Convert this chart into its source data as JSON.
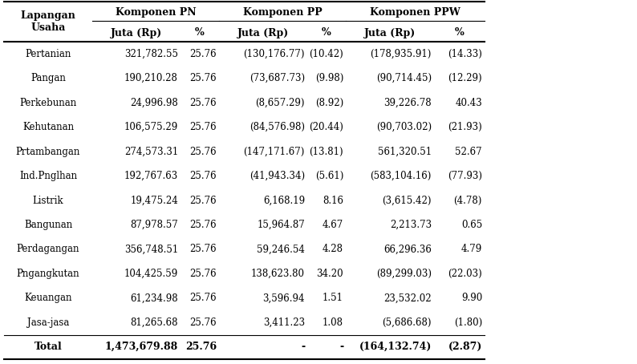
{
  "col_headers1": [
    "Lapangan\nUsaha",
    "Komponen PN",
    "Komponen PP",
    "Komponen PPW"
  ],
  "col_headers2": [
    "Juta (Rp)",
    "%",
    "Juta (Rp)",
    "%",
    "Juta (Rp)",
    "%"
  ],
  "rows": [
    [
      "Pertanian",
      "321,782.55",
      "25.76",
      "(130,176.77)",
      "(10.42)",
      "(178,935.91)",
      "(14.33)"
    ],
    [
      "Pangan",
      "190,210.28",
      "25.76",
      "(73,687.73)",
      "(9.98)",
      "(90,714.45)",
      "(12.29)"
    ],
    [
      "Perkebunan",
      "24,996.98",
      "25.76",
      "(8,657.29)",
      "(8.92)",
      "39,226.78",
      "40.43"
    ],
    [
      "Kehutanan",
      "106,575.29",
      "25.76",
      "(84,576.98)",
      "(20.44)",
      "(90,703.02)",
      "(21.93)"
    ],
    [
      "Prtambangan",
      "274,573.31",
      "25.76",
      "(147,171.67)",
      "(13.81)",
      "561,320.51",
      "52.67"
    ],
    [
      "Ind.Pnglhan",
      "192,767.63",
      "25.76",
      "(41,943.34)",
      "(5.61)",
      "(583,104.16)",
      "(77.93)"
    ],
    [
      "Listrik",
      "19,475.24",
      "25.76",
      "6,168.19",
      "8.16",
      "(3,615.42)",
      "(4.78)"
    ],
    [
      "Bangunan",
      "87,978.57",
      "25.76",
      "15,964.87",
      "4.67",
      "2,213.73",
      "0.65"
    ],
    [
      "Perdagangan",
      "356,748.51",
      "25.76",
      "59,246.54",
      "4.28",
      "66,296.36",
      "4.79"
    ],
    [
      "Pngangkutan",
      "104,425.59",
      "25.76",
      "138,623.80",
      "34.20",
      "(89,299.03)",
      "(22.03)"
    ],
    [
      "Keuangan",
      "61,234.98",
      "25.76",
      "3,596.94",
      "1.51",
      "23,532.02",
      "9.90"
    ],
    [
      "Jasa-jasa",
      "81,265.68",
      "25.76",
      "3,411.23",
      "1.08",
      "(5,686.68)",
      "(1.80)"
    ],
    [
      "Total",
      "1,473,679.88",
      "25.76",
      "-",
      "-",
      "(164,132.74)",
      "(2.87)"
    ]
  ],
  "bg_color": "#ffffff",
  "line_color": "#000000",
  "font_size_header": 9,
  "font_size_data": 8.5,
  "font_family": "DejaVu Serif"
}
